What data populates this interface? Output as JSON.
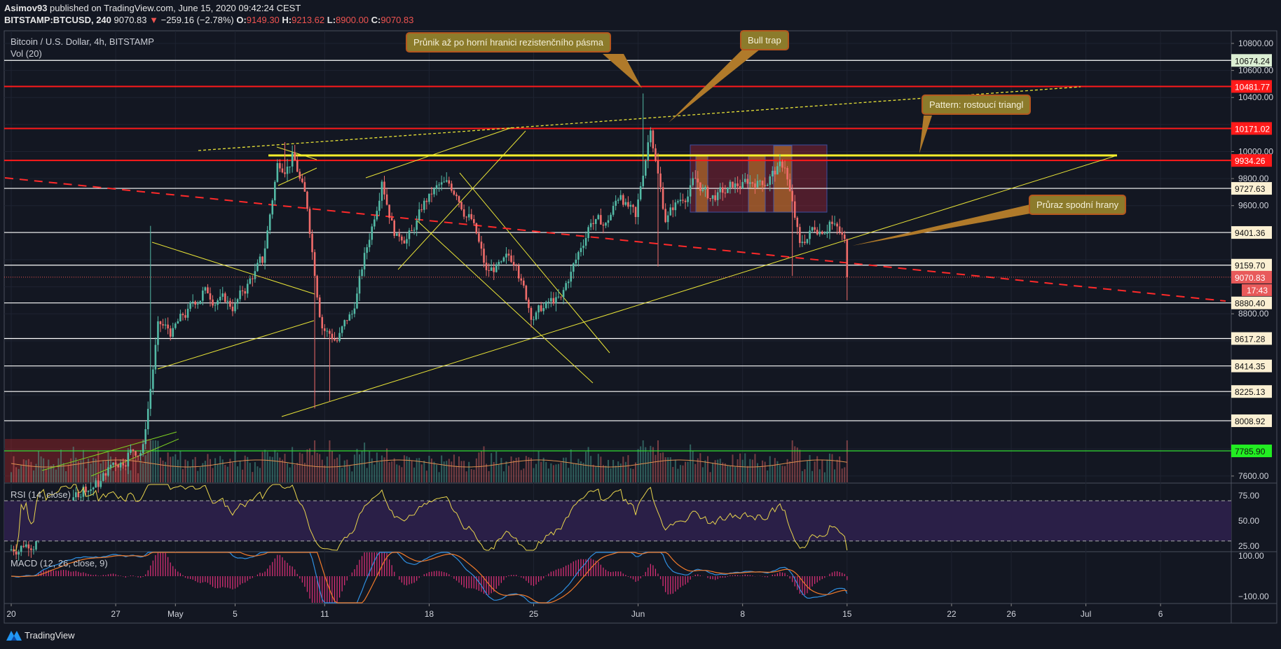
{
  "header": {
    "publisher": "Asimov93",
    "published_text": "published on TradingView.com, June 15, 2020 09:42:24 CEST",
    "symbol": "BITSTAMP:BTCUSD, 240",
    "last": "9070.83",
    "change": "−259.16 (−2.78%)",
    "o_label": "O:",
    "o": "9149.30",
    "h_label": "H:",
    "h": "9213.62",
    "l_label": "L:",
    "l": "8900.00",
    "c_label": "C:",
    "c": "9070.83"
  },
  "legend": {
    "title": "Bitcoin / U.S. Dollar, 4h, BITSTAMP",
    "vol": "Vol (20)",
    "rsi": "RSI (14, close)",
    "macd": "MACD (12, 26, close, 9)"
  },
  "annotations": {
    "breakout": "Průnik až po horní hranici rezistenčního pásma",
    "bull_trap": "Bull trap",
    "pattern": "Pattern: rostoucí triangl",
    "breakdown": "Průraz spodní hrany"
  },
  "footer": {
    "brand": "TradingView"
  },
  "colors": {
    "up": "#53b9a5",
    "down": "#f06c6a",
    "bg": "#131722",
    "resistance": "#ff1a1a",
    "support": "#ffffff",
    "trend": "#e8e337",
    "rsi": "#e8d44d",
    "macd": "#2f8fe0",
    "signal": "#f07a2a",
    "hist": "#e0307a"
  },
  "chart_data": {
    "type": "candlestick",
    "title": "Bitcoin / U.S. Dollar, 4h, BITSTAMP",
    "x_ticks": [
      "20",
      "27",
      "May",
      "5",
      "11",
      "18",
      "25",
      "Jun",
      "8",
      "15",
      "22",
      "26",
      "Jul",
      "6"
    ],
    "x_tick_days": [
      0,
      7,
      11,
      15,
      21,
      28,
      35,
      42,
      49,
      56,
      63,
      67,
      72,
      77
    ],
    "y_ticks": [
      "10800.00",
      "10600.00",
      "10400.00",
      "10000.00",
      "9800.00",
      "9600.00",
      "8800.00",
      "7600.00"
    ],
    "y_tick_values": [
      10800,
      10600,
      10400,
      10000,
      9800,
      9600,
      8800,
      7600
    ],
    "ylim": [
      7600,
      10800
    ],
    "start_date": "2020-04-20",
    "daily_close": [
      7100,
      7150,
      7250,
      7400,
      7500,
      7550,
      7700,
      7750,
      7800,
      8700,
      8650,
      8800,
      8950,
      8900,
      8850,
      9000,
      9200,
      9900,
      9950,
      9600,
      8700,
      8600,
      8800,
      9300,
      9800,
      9350,
      9400,
      9650,
      9750,
      9700,
      9500,
      9100,
      9150,
      9200,
      8800,
      8850,
      8900,
      9200,
      9500,
      9450,
      9700,
      9500,
      10200,
      9500,
      9650,
      9800,
      9650,
      9700,
      9750,
      9780,
      9800,
      9900,
      9300,
      9450,
      9480,
      9330,
      9070
    ],
    "spikes": [
      {
        "day": 9,
        "high": 9450
      },
      {
        "day": 18,
        "high": 10070
      },
      {
        "day": 20,
        "low": 8100
      },
      {
        "day": 21,
        "low": 8150
      },
      {
        "day": 42,
        "high": 10430
      },
      {
        "day": 43,
        "low": 9150
      },
      {
        "day": 52,
        "low": 9080
      },
      {
        "day": 56,
        "low": 8900
      }
    ],
    "levels": [
      {
        "price": 10674.24,
        "label": "10674.24",
        "kind": "white-green"
      },
      {
        "price": 10481.77,
        "label": "10481.77",
        "kind": "red"
      },
      {
        "price": 10171.02,
        "label": "10171.02",
        "kind": "red"
      },
      {
        "price": 9934.26,
        "label": "9934.26",
        "kind": "red"
      },
      {
        "price": 9727.63,
        "label": "9727.63",
        "kind": "white"
      },
      {
        "price": 9401.36,
        "label": "9401.36",
        "kind": "white"
      },
      {
        "price": 9159.7,
        "label": "9159.70",
        "kind": "white"
      },
      {
        "price": 8880.4,
        "label": "8880.40",
        "kind": "white"
      },
      {
        "price": 8617.28,
        "label": "8617.28",
        "kind": "white"
      },
      {
        "price": 8414.35,
        "label": "8414.35",
        "kind": "white"
      },
      {
        "price": 8225.13,
        "label": "8225.13",
        "kind": "white"
      },
      {
        "price": 8008.92,
        "label": "8008.92",
        "kind": "white"
      },
      {
        "price": 7785.9,
        "label": "7785.90",
        "kind": "green"
      }
    ],
    "current_price": {
      "price": 9070.83,
      "label": "9070.83",
      "countdown": "17:43"
    },
    "rsi": {
      "ticks": [
        "75.00",
        "50.00",
        "25.00"
      ],
      "tick_values": [
        75,
        50,
        25
      ],
      "band": [
        30,
        70
      ]
    },
    "macd": {
      "ticks": [
        "100.00",
        "−100.00"
      ],
      "tick_values": [
        100,
        -100
      ]
    }
  }
}
